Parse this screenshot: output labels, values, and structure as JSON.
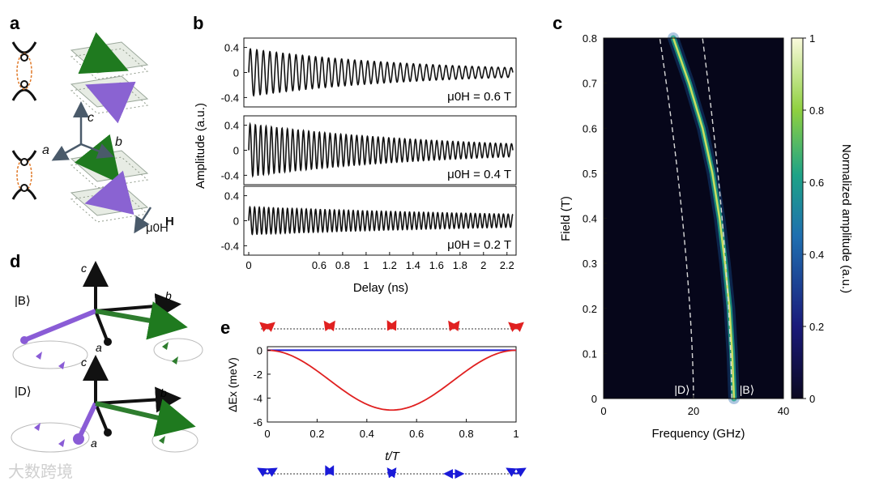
{
  "panels": {
    "a": "a",
    "b": "b",
    "c": "c",
    "d": "d",
    "e": "e"
  },
  "panel_a": {
    "axis_c": "c",
    "axis_a": "a",
    "axis_b": "b",
    "field_label": "μ0H",
    "colors": {
      "top_arrow": "#1f7a1f",
      "bottom_arrow": "#8a63d2",
      "axes": "#4a5a6a",
      "dash": "#e07a2a"
    }
  },
  "panel_b": {
    "ylabel": "Amplitude (a.u.)",
    "xlabel": "Delay (ns)",
    "xticks": [
      "0",
      "0.6",
      "0.8",
      "1",
      "1.2",
      "1.4",
      "1.6",
      "1.8",
      "2",
      "2.2"
    ],
    "yticks": [
      "0.4",
      "0",
      "-0.4"
    ],
    "subplots": [
      {
        "label": "μ0H = 0.6 T",
        "amplitude": 0.38,
        "decay": 1.4
      },
      {
        "label": "μ0H = 0.4 T",
        "amplitude": 0.42,
        "decay": 1.6
      },
      {
        "label": "μ0H = 0.2 T",
        "amplitude": 0.22,
        "decay": 3.0
      }
    ]
  },
  "panel_c": {
    "ylabel": "Field (T)",
    "xlabel": "Frequency (GHz)",
    "cbar_label": "Normalized amplitude (a.u.)",
    "xticks": [
      "0",
      "20",
      "40"
    ],
    "yticks": [
      "0",
      "0.1",
      "0.2",
      "0.3",
      "0.4",
      "0.5",
      "0.6",
      "0.7",
      "0.8"
    ],
    "cticks": [
      "0",
      "0.2",
      "0.4",
      "0.6",
      "0.8",
      "1"
    ],
    "label_D": "|D⟩",
    "label_B": "|B⟩"
  },
  "panel_d": {
    "state_B": "|B⟩",
    "state_D": "|D⟩",
    "axis_c": "c",
    "axis_b": "b",
    "axis_a": "a",
    "colors": {
      "purple": "#8a5cd6",
      "green": "#2e7d2e",
      "black": "#111111"
    }
  },
  "panel_e": {
    "ylabel": "ΔEx (meV)",
    "xlabel": "t/T",
    "xticks": [
      "0",
      "0.2",
      "0.4",
      "0.6",
      "0.8",
      "1"
    ],
    "yticks": [
      "0",
      "-2",
      "-4",
      "-6"
    ],
    "colors": {
      "red": "#e02020",
      "blue": "#1a1ad8"
    }
  },
  "watermark": "大数跨境",
  "chart_data": [
    {
      "type": "line",
      "title": "",
      "xlabel": "Delay (ns)",
      "ylabel": "Amplitude (a.u.)",
      "xlim": [
        0,
        2.25
      ],
      "ylim": [
        -0.55,
        0.55
      ],
      "series": [
        {
          "name": "μ0H = 0.6 T",
          "frequency_ghz": 18,
          "amplitude": 0.38,
          "decay_ns": 1.4
        },
        {
          "name": "μ0H = 0.4 T",
          "frequency_ghz": 22,
          "amplitude": 0.42,
          "decay_ns": 1.6
        },
        {
          "name": "μ0H = 0.2 T",
          "frequency_ghz": 25,
          "amplitude": 0.22,
          "decay_ns": 3.0
        }
      ]
    },
    {
      "type": "heatmap",
      "xlabel": "Frequency (GHz)",
      "ylabel": "Field (T)",
      "xlim": [
        0,
        40
      ],
      "ylim": [
        0,
        0.8
      ],
      "clim": [
        0,
        1
      ],
      "ridge": {
        "field": [
          0,
          0.1,
          0.2,
          0.3,
          0.4,
          0.5,
          0.6,
          0.7,
          0.8
        ],
        "frequency": [
          29,
          28.6,
          28,
          27,
          25.8,
          24.2,
          22,
          19,
          15.5
        ]
      }
    },
    {
      "type": "line",
      "xlabel": "t/T",
      "ylabel": "ΔEx (meV)",
      "xlim": [
        0,
        1
      ],
      "ylim": [
        -6,
        0.3
      ],
      "series": [
        {
          "x": [
            0,
            0.1,
            0.2,
            0.3,
            0.4,
            0.5,
            0.6,
            0.7,
            0.8,
            0.9,
            1
          ],
          "y": [
            0,
            -0.48,
            -1.81,
            -3.27,
            -4.52,
            -5,
            -4.52,
            -3.27,
            -1.81,
            -0.48,
            0
          ]
        },
        {
          "x": [
            0,
            1
          ],
          "y": [
            0,
            0
          ]
        }
      ]
    }
  ]
}
